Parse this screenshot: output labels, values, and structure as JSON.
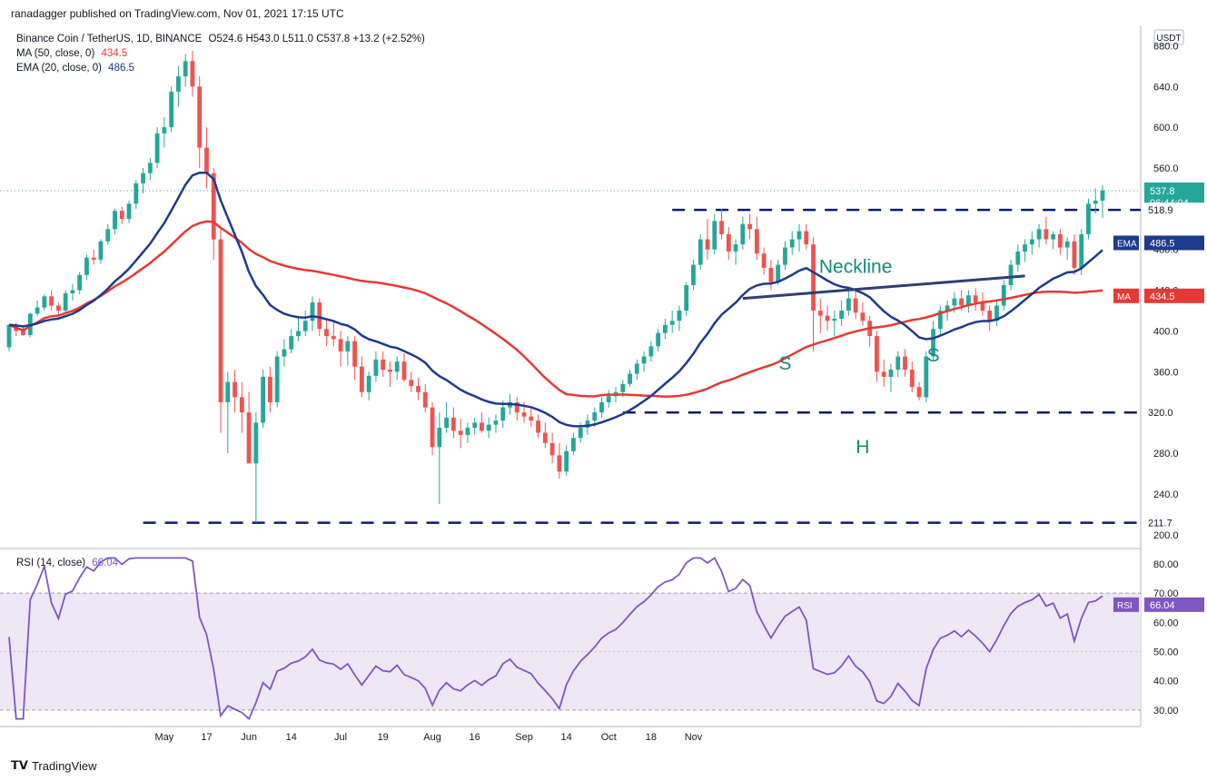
{
  "header": {
    "published": "ranadagger published on TradingView.com, Nov 01, 2021 17:15 UTC",
    "symbol": "Binance Coin / TetherUS, 1D, BINANCE",
    "ohlc": "O524.6 H543.0 L511.0 C537.8 +13.2 (+2.52%)",
    "ma_label": "MA (50, close, 0)",
    "ma_value": "434.5",
    "ema_label": "EMA (20, close, 0)",
    "ema_value": "486.5",
    "rsi_label": "RSI (14, close)",
    "rsi_value": "66.04",
    "currency_badge": "USDT"
  },
  "footer": {
    "brand": "TradingView"
  },
  "colors": {
    "up": "#26a69a",
    "down": "#ef5350",
    "ema": "#1e3a8a",
    "ma": "#e53935",
    "rsi": "#7e57c2",
    "rsi_band": "#ede7f6",
    "level": "#0d1b6b",
    "annotation": "#138a7d"
  },
  "chart_data": {
    "type": "candlestick",
    "price_axis": {
      "ticks": [
        200,
        240,
        280,
        320,
        360,
        400,
        440,
        480,
        520,
        560,
        600,
        640,
        680
      ],
      "range": [
        190,
        700
      ]
    },
    "rsi_axis": {
      "ticks": [
        30,
        40,
        50,
        60,
        70,
        80
      ],
      "range": [
        25,
        84
      ],
      "band": [
        30,
        70
      ]
    },
    "x_labels": [
      {
        "i": 22,
        "label": "May"
      },
      {
        "i": 28,
        "label": "17"
      },
      {
        "i": 34,
        "label": "Jun"
      },
      {
        "i": 40,
        "label": "14"
      },
      {
        "i": 47,
        "label": "Jul"
      },
      {
        "i": 53,
        "label": "19"
      },
      {
        "i": 60,
        "label": "Aug"
      },
      {
        "i": 66,
        "label": "16"
      },
      {
        "i": 73,
        "label": "Sep"
      },
      {
        "i": 79,
        "label": "14"
      },
      {
        "i": 85,
        "label": "Oct"
      },
      {
        "i": 91,
        "label": "18"
      },
      {
        "i": 97,
        "label": "Nov"
      }
    ],
    "candles": [
      [
        384,
        406,
        380,
        406
      ],
      [
        406,
        408,
        395,
        400
      ],
      [
        400,
        405,
        395,
        396
      ],
      [
        396,
        418,
        394,
        417
      ],
      [
        417,
        430,
        415,
        423
      ],
      [
        423,
        436,
        420,
        434
      ],
      [
        434,
        440,
        420,
        425
      ],
      [
        425,
        428,
        415,
        420
      ],
      [
        420,
        440,
        418,
        437
      ],
      [
        437,
        446,
        430,
        440
      ],
      [
        440,
        458,
        436,
        455
      ],
      [
        455,
        475,
        450,
        472
      ],
      [
        472,
        480,
        465,
        470
      ],
      [
        470,
        490,
        466,
        488
      ],
      [
        488,
        505,
        485,
        500
      ],
      [
        500,
        520,
        495,
        518
      ],
      [
        518,
        522,
        505,
        510
      ],
      [
        510,
        528,
        506,
        525
      ],
      [
        525,
        548,
        520,
        545
      ],
      [
        545,
        560,
        535,
        555
      ],
      [
        555,
        570,
        548,
        565
      ],
      [
        565,
        600,
        560,
        594
      ],
      [
        594,
        610,
        580,
        600
      ],
      [
        600,
        640,
        595,
        635
      ],
      [
        635,
        660,
        620,
        650
      ],
      [
        650,
        672,
        640,
        665
      ],
      [
        665,
        675,
        630,
        640
      ],
      [
        640,
        650,
        560,
        580
      ],
      [
        580,
        600,
        540,
        555
      ],
      [
        555,
        560,
        470,
        490
      ],
      [
        490,
        500,
        300,
        330
      ],
      [
        330,
        360,
        280,
        350
      ],
      [
        350,
        362,
        320,
        335
      ],
      [
        335,
        350,
        300,
        320
      ],
      [
        320,
        340,
        270,
        270
      ],
      [
        270,
        320,
        212,
        310
      ],
      [
        310,
        362,
        305,
        355
      ],
      [
        355,
        365,
        320,
        330
      ],
      [
        330,
        380,
        325,
        375
      ],
      [
        375,
        392,
        365,
        382
      ],
      [
        382,
        402,
        378,
        395
      ],
      [
        395,
        415,
        390,
        400
      ],
      [
        400,
        420,
        395,
        410
      ],
      [
        410,
        434,
        400,
        428
      ],
      [
        428,
        432,
        395,
        402
      ],
      [
        402,
        412,
        385,
        395
      ],
      [
        395,
        410,
        385,
        392
      ],
      [
        392,
        400,
        365,
        380
      ],
      [
        380,
        395,
        366,
        390
      ],
      [
        390,
        395,
        352,
        365
      ],
      [
        365,
        375,
        335,
        340
      ],
      [
        340,
        360,
        332,
        356
      ],
      [
        356,
        380,
        350,
        372
      ],
      [
        372,
        380,
        355,
        362
      ],
      [
        362,
        370,
        345,
        360
      ],
      [
        360,
        375,
        352,
        370
      ],
      [
        370,
        378,
        350,
        352
      ],
      [
        352,
        360,
        340,
        346
      ],
      [
        346,
        354,
        332,
        340
      ],
      [
        340,
        348,
        320,
        325
      ],
      [
        325,
        330,
        278,
        286
      ],
      [
        286,
        320,
        230,
        305
      ],
      [
        305,
        330,
        300,
        315
      ],
      [
        315,
        325,
        295,
        302
      ],
      [
        302,
        314,
        285,
        298
      ],
      [
        298,
        310,
        290,
        305
      ],
      [
        305,
        315,
        298,
        310
      ],
      [
        310,
        320,
        300,
        302
      ],
      [
        302,
        315,
        295,
        308
      ],
      [
        308,
        318,
        300,
        312
      ],
      [
        312,
        332,
        305,
        325
      ],
      [
        325,
        338,
        318,
        330
      ],
      [
        330,
        335,
        312,
        320
      ],
      [
        320,
        330,
        310,
        316
      ],
      [
        316,
        324,
        306,
        312
      ],
      [
        312,
        318,
        295,
        300
      ],
      [
        300,
        310,
        285,
        290
      ],
      [
        290,
        300,
        270,
        278
      ],
      [
        278,
        290,
        255,
        262
      ],
      [
        262,
        288,
        258,
        282
      ],
      [
        282,
        300,
        278,
        295
      ],
      [
        295,
        310,
        290,
        305
      ],
      [
        305,
        318,
        298,
        312
      ],
      [
        312,
        325,
        306,
        320
      ],
      [
        320,
        335,
        315,
        330
      ],
      [
        330,
        342,
        325,
        336
      ],
      [
        336,
        345,
        330,
        340
      ],
      [
        340,
        352,
        335,
        348
      ],
      [
        348,
        362,
        345,
        358
      ],
      [
        358,
        372,
        352,
        368
      ],
      [
        368,
        380,
        360,
        375
      ],
      [
        375,
        390,
        370,
        385
      ],
      [
        385,
        402,
        380,
        398
      ],
      [
        398,
        412,
        392,
        406
      ],
      [
        406,
        420,
        398,
        410
      ],
      [
        410,
        425,
        400,
        420
      ],
      [
        420,
        448,
        415,
        445
      ],
      [
        445,
        470,
        440,
        465
      ],
      [
        465,
        495,
        460,
        490
      ],
      [
        490,
        510,
        470,
        480
      ],
      [
        480,
        515,
        475,
        508
      ],
      [
        508,
        520,
        490,
        495
      ],
      [
        495,
        502,
        470,
        478
      ],
      [
        478,
        490,
        465,
        485
      ],
      [
        485,
        512,
        480,
        505
      ],
      [
        505,
        515,
        490,
        500
      ],
      [
        500,
        512,
        470,
        476
      ],
      [
        476,
        482,
        455,
        462
      ],
      [
        462,
        470,
        440,
        448
      ],
      [
        448,
        470,
        445,
        465
      ],
      [
        465,
        488,
        460,
        482
      ],
      [
        482,
        498,
        475,
        490
      ],
      [
        490,
        505,
        478,
        498
      ],
      [
        498,
        505,
        480,
        485
      ],
      [
        485,
        492,
        380,
        420
      ],
      [
        420,
        432,
        398,
        415
      ],
      [
        415,
        425,
        400,
        410
      ],
      [
        410,
        420,
        395,
        412
      ],
      [
        412,
        430,
        405,
        420
      ],
      [
        420,
        440,
        415,
        432
      ],
      [
        432,
        440,
        412,
        418
      ],
      [
        418,
        428,
        405,
        410
      ],
      [
        410,
        415,
        385,
        395
      ],
      [
        395,
        400,
        350,
        360
      ],
      [
        360,
        372,
        345,
        355
      ],
      [
        355,
        368,
        340,
        362
      ],
      [
        362,
        380,
        355,
        375
      ],
      [
        375,
        382,
        355,
        362
      ],
      [
        362,
        370,
        340,
        345
      ],
      [
        345,
        350,
        332,
        335
      ],
      [
        335,
        380,
        330,
        375
      ],
      [
        375,
        410,
        370,
        402
      ],
      [
        402,
        425,
        395,
        420
      ],
      [
        420,
        430,
        410,
        425
      ],
      [
        425,
        438,
        418,
        432
      ],
      [
        432,
        440,
        420,
        425
      ],
      [
        425,
        440,
        418,
        435
      ],
      [
        435,
        442,
        420,
        428
      ],
      [
        428,
        438,
        415,
        420
      ],
      [
        420,
        425,
        400,
        410
      ],
      [
        410,
        430,
        405,
        425
      ],
      [
        425,
        450,
        420,
        445
      ],
      [
        445,
        470,
        440,
        465
      ],
      [
        465,
        485,
        458,
        478
      ],
      [
        478,
        490,
        468,
        485
      ],
      [
        485,
        498,
        475,
        490
      ],
      [
        490,
        505,
        482,
        500
      ],
      [
        500,
        512,
        485,
        490
      ],
      [
        490,
        498,
        480,
        495
      ],
      [
        495,
        500,
        475,
        482
      ],
      [
        482,
        492,
        470,
        488
      ],
      [
        488,
        495,
        455,
        462
      ],
      [
        462,
        500,
        455,
        495
      ],
      [
        495,
        530,
        490,
        525
      ],
      [
        525,
        540,
        515,
        528
      ],
      [
        528,
        543,
        511,
        538
      ]
    ],
    "levels": [
      {
        "value": 518.9,
        "label": "518.9"
      },
      {
        "value": 320.0,
        "label": "320.0"
      },
      {
        "value": 211.7,
        "label": "211.7"
      }
    ],
    "last_price": {
      "value": "537.8",
      "countdown": "06:44:04"
    },
    "ema_label": "EMA",
    "ema_last": "486.5",
    "ma_label": "MA",
    "ma_last": "434.5",
    "rsi_tag": "RSI",
    "rsi_last": "66.04",
    "annotations": {
      "neckline": "Neckline",
      "s1": "S",
      "h": "H",
      "s2": "S"
    }
  }
}
